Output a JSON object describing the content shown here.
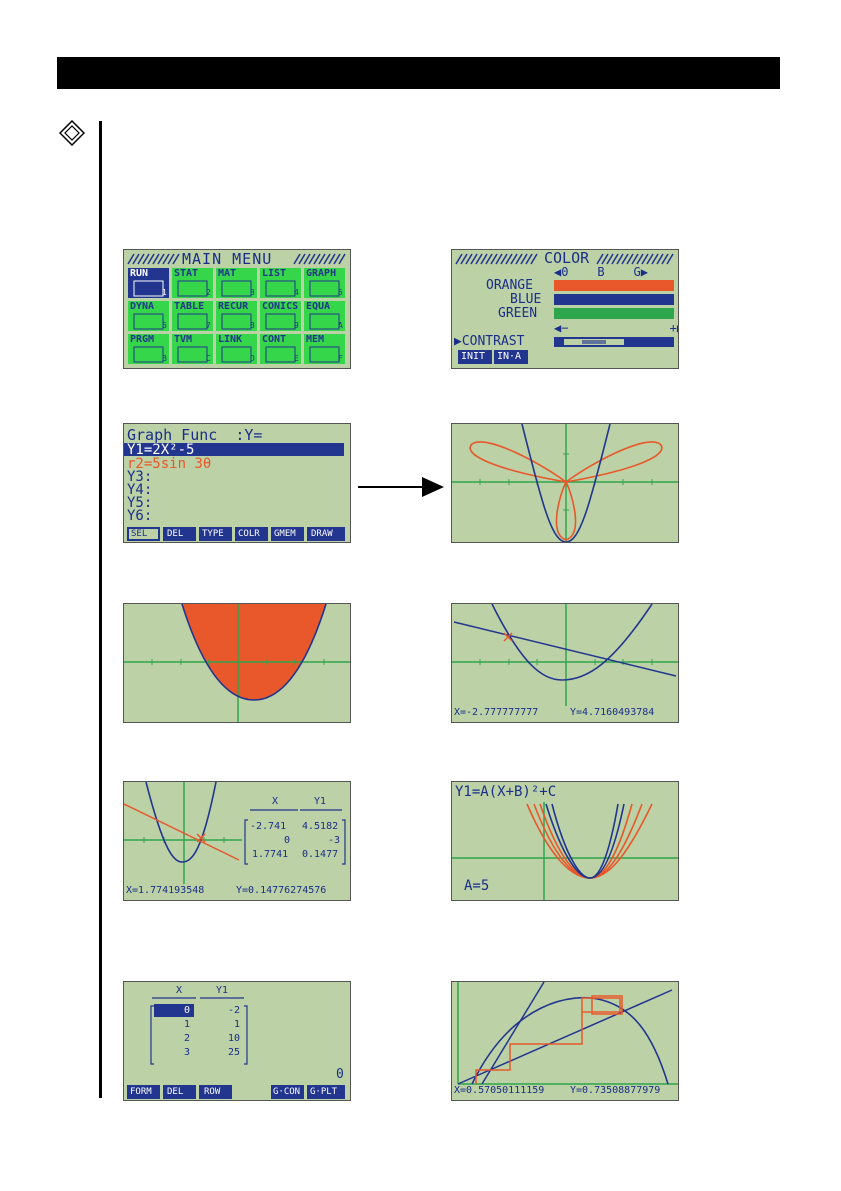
{
  "colors": {
    "lcd": "#bcd1a6",
    "blue": "#22358f",
    "orange": "#e8582a",
    "green": "#2ea64d",
    "menu_green": "#36d64a"
  },
  "main_menu": {
    "title": "MAIN MENU",
    "icons": [
      {
        "label": "RUN",
        "corner": "1",
        "selected": true
      },
      {
        "label": "STAT",
        "corner": "2"
      },
      {
        "label": "MAT",
        "corner": "3"
      },
      {
        "label": "LIST",
        "corner": "4"
      },
      {
        "label": "GRAPH",
        "corner": "5"
      },
      {
        "label": "DYNA",
        "corner": "6"
      },
      {
        "label": "TABLE",
        "corner": "7"
      },
      {
        "label": "RECUR",
        "corner": "8"
      },
      {
        "label": "CONICS",
        "corner": "9"
      },
      {
        "label": "EQUA",
        "corner": "A"
      },
      {
        "label": "PRGM",
        "corner": "B"
      },
      {
        "label": "TVM",
        "corner": "C"
      },
      {
        "label": "LINK",
        "corner": "D"
      },
      {
        "label": "CONT",
        "corner": "E"
      },
      {
        "label": "MEM",
        "corner": "F"
      }
    ]
  },
  "color_screen": {
    "title": "COLOR",
    "scale": "◀0    B    G▶",
    "rows": [
      {
        "label": "ORANGE",
        "color": "#e8582a"
      },
      {
        "label": "BLUE",
        "color": "#22358f"
      },
      {
        "label": "GREEN",
        "color": "#2ea64d"
      }
    ],
    "scale2": "◀−              +▶",
    "contrast_label": "▶CONTRAST",
    "softkeys": [
      "INIT",
      "IN·A"
    ]
  },
  "graph_func": {
    "title": "Graph Func  :Y=",
    "lines": [
      {
        "text": "Y1=2X²-5",
        "selected": true
      },
      {
        "text": "r2=5sin 3θ",
        "color": "orange"
      },
      {
        "text": "Y3:"
      },
      {
        "text": "Y4:"
      },
      {
        "text": "Y5:"
      },
      {
        "text": "Y6:"
      }
    ],
    "softkeys": [
      "SEL",
      "DEL",
      "TYPE",
      "COLR",
      "GMEM",
      "DRAW"
    ]
  },
  "trace_readout": {
    "x": "X=-2.777777777",
    "y": "Y=4.7160493784"
  },
  "table_graph": {
    "headers": [
      "X",
      "Y1"
    ],
    "rows": [
      [
        "-2.741",
        "4.5182"
      ],
      [
        "0",
        "-3"
      ],
      [
        "1.7741",
        "0.1477"
      ]
    ],
    "x": "X=1.774193548",
    "y": "Y=0.14776274576"
  },
  "dyna": {
    "formula": "Y1=A(X+B)²+C",
    "param": "A=5"
  },
  "recur_table": {
    "headers": [
      "X",
      "Y1"
    ],
    "rows": [
      [
        "0",
        "-2"
      ],
      [
        "1",
        "1"
      ],
      [
        "2",
        "10"
      ],
      [
        "3",
        "25"
      ]
    ],
    "value": "0",
    "softkeys": [
      "FORM",
      "DEL",
      "ROW",
      "",
      "G·CON",
      "G·PLT"
    ]
  },
  "web_readout": {
    "x": "X=0.57050111159",
    "y": "Y=0.73508877979"
  }
}
